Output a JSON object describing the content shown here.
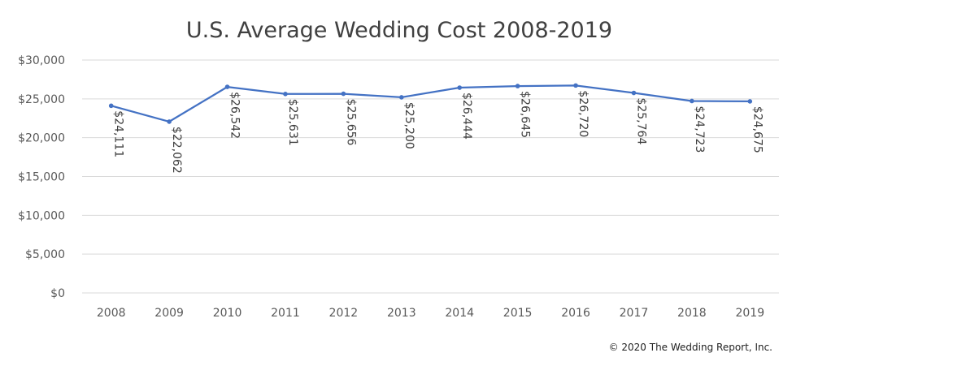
{
  "chart_data": {
    "type": "line",
    "title": "U.S. Average Wedding Cost 2008-2019",
    "categories": [
      "2008",
      "2009",
      "2010",
      "2011",
      "2012",
      "2013",
      "2014",
      "2015",
      "2016",
      "2017",
      "2018",
      "2019"
    ],
    "series": [
      {
        "values": [
          24111,
          22062,
          26542,
          25631,
          25656,
          25200,
          26444,
          26645,
          26720,
          25764,
          24723,
          24675
        ],
        "data_labels": [
          "$24,111",
          "$22,062",
          "$26,542",
          "$25,631",
          "$25,656",
          "$25,200",
          "$26,444",
          "$26,645",
          "$26,720",
          "$25,764",
          "$24,723",
          "$24,675"
        ],
        "color": "#4472c4"
      }
    ],
    "y_ticks": [
      "$0",
      "$5,000",
      "$10,000",
      "$15,000",
      "$20,000",
      "$25,000",
      "$30,000"
    ],
    "ylim": [
      0,
      30000
    ],
    "xlabel": "",
    "ylabel": "",
    "grid": true,
    "legend": "none",
    "data_label_orientation": "rotated-vertical"
  },
  "footer": {
    "copyright": "© 2020 The Wedding Report, Inc."
  }
}
